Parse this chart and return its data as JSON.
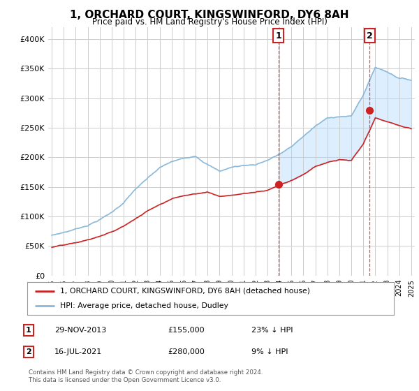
{
  "title": "1, ORCHARD COURT, KINGSWINFORD, DY6 8AH",
  "subtitle": "Price paid vs. HM Land Registry's House Price Index (HPI)",
  "legend_line1": "1, ORCHARD COURT, KINGSWINFORD, DY6 8AH (detached house)",
  "legend_line2": "HPI: Average price, detached house, Dudley",
  "footnote": "Contains HM Land Registry data © Crown copyright and database right 2024.\nThis data is licensed under the Open Government Licence v3.0.",
  "transaction1_date": "29-NOV-2013",
  "transaction1_price": "£155,000",
  "transaction1_hpi": "23% ↓ HPI",
  "transaction2_date": "16-JUL-2021",
  "transaction2_price": "£280,000",
  "transaction2_hpi": "9% ↓ HPI",
  "hpi_color": "#89b8d8",
  "price_color": "#cc2222",
  "fill_color": "#ddeeff",
  "background_color": "#ffffff",
  "plot_bg_color": "#ffffff",
  "grid_color": "#cccccc",
  "ylim": [
    0,
    420000
  ],
  "yticks": [
    0,
    50000,
    100000,
    150000,
    200000,
    250000,
    300000,
    350000,
    400000
  ],
  "transaction1_x": 2013.91,
  "transaction1_y": 155000,
  "transaction2_x": 2021.54,
  "transaction2_y": 280000,
  "xlim_start": 1994.7,
  "xlim_end": 2025.3
}
